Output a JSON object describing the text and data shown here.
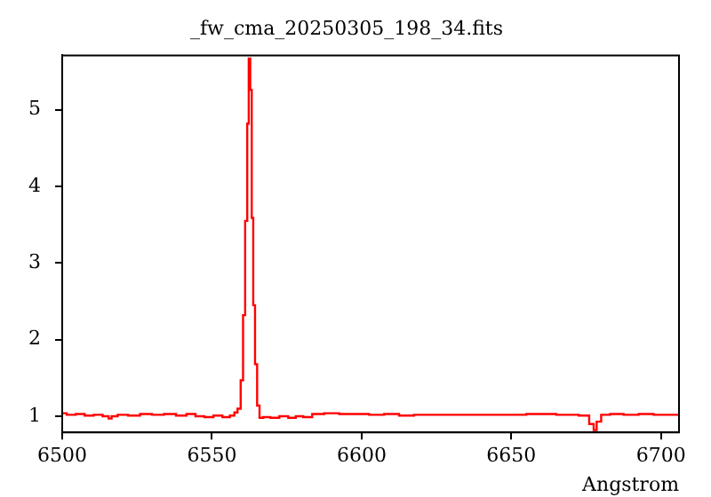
{
  "chart_data": {
    "type": "step",
    "title": "_fw_cma_20250305_198_34.fits",
    "xlabel": "Angstrom",
    "xlim": [
      6500,
      6706
    ],
    "ylim": [
      0.79,
      5.71
    ],
    "xticks": [
      6500,
      6550,
      6600,
      6650,
      6700
    ],
    "yticks": [
      1,
      2,
      3,
      4,
      5
    ],
    "grid": false,
    "legend": false,
    "series": [
      {
        "color": "#ff0000",
        "x": [
          6500,
          6503,
          6506,
          6509,
          6512,
          6515,
          6516,
          6517,
          6520,
          6524,
          6528,
          6532,
          6536,
          6540,
          6543,
          6546,
          6549,
          6552,
          6555,
          6557,
          6558,
          6559.1,
          6560.1,
          6560.7,
          6561.5,
          6562.1,
          6562.5,
          6563.1,
          6563.5,
          6564.1,
          6564.7,
          6565.5,
          6566.3,
          6568,
          6571,
          6574,
          6577,
          6579,
          6582,
          6585,
          6590,
          6595,
          6600,
          6605,
          6610,
          6615,
          6620,
          6630,
          6640,
          6650,
          6660,
          6670,
          6675,
          6677,
          6678,
          6679,
          6681,
          6685,
          6690,
          6695,
          6700,
          6706
        ],
        "values": [
          1.04,
          1.02,
          1.03,
          1.01,
          1.02,
          1.0,
          0.97,
          1.0,
          1.02,
          1.01,
          1.03,
          1.02,
          1.03,
          1.01,
          1.03,
          1.0,
          0.99,
          1.01,
          0.99,
          1.01,
          1.05,
          1.1,
          1.47,
          2.32,
          3.55,
          4.82,
          5.67,
          5.26,
          3.59,
          2.45,
          1.68,
          1.14,
          0.98,
          0.99,
          0.98,
          1.0,
          0.98,
          1.0,
          0.99,
          1.03,
          1.04,
          1.03,
          1.03,
          1.02,
          1.03,
          1.01,
          1.02,
          1.02,
          1.02,
          1.02,
          1.03,
          1.02,
          1.01,
          0.9,
          0.82,
          0.93,
          1.02,
          1.03,
          1.02,
          1.03,
          1.02,
          1.02
        ]
      }
    ]
  }
}
